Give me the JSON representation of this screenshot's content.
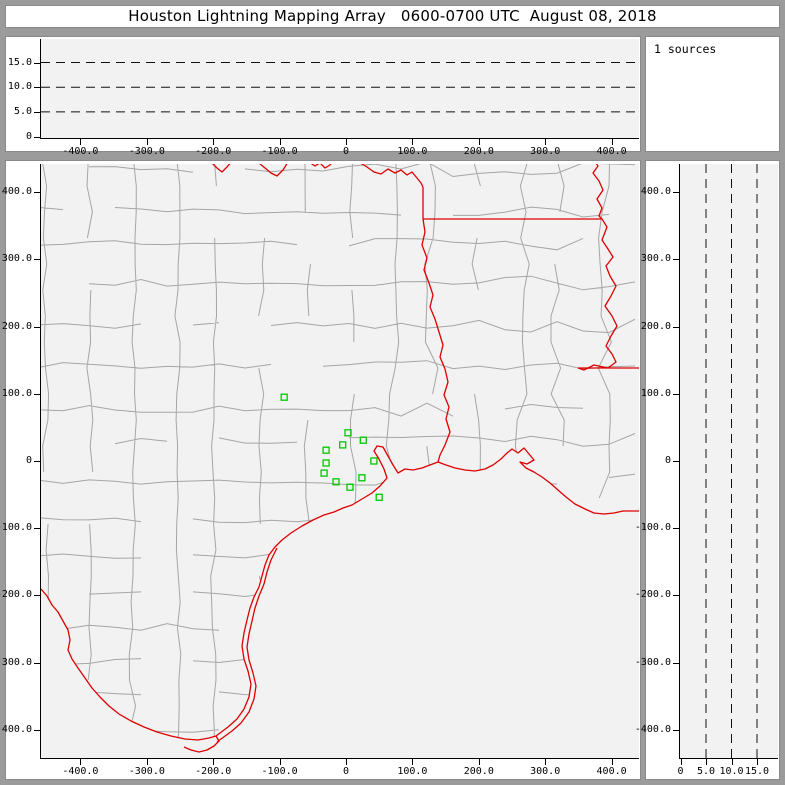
{
  "window": {
    "title": "Houston Lightning Mapping Array   0600-0700 UTC  August 08, 2018"
  },
  "sources_panel": {
    "label": "1 sources"
  },
  "colors": {
    "chrome": "#9b9b9b",
    "panel_bg": "#ffffff",
    "plot_bg": "#f2f2f2",
    "axis": "#000000",
    "county_line": "#a5a5a5",
    "state_border": "#dd0000",
    "station_marker": "#00c800"
  },
  "chart_data": [
    {
      "id": "altitude-vs-east-west",
      "type": "scatter",
      "position": "top",
      "title": "",
      "xlabel": "",
      "ylabel": "",
      "xlim": [
        -456,
        444
      ],
      "ylim": [
        0,
        20
      ],
      "x_tick_values": [
        -400,
        -300,
        -200,
        -100,
        0,
        100,
        200,
        300,
        400
      ],
      "x_tick_labels": [
        "-400.0",
        "-300.0",
        "-200.0",
        "-100.0",
        "0",
        "100.0",
        "200.0",
        "300.0",
        "400.0"
      ],
      "y_tick_values": [
        0,
        5,
        10,
        15
      ],
      "y_tick_labels": [
        "0",
        "5.0",
        "10.0",
        "15.0"
      ],
      "y_gridlines": [
        5,
        10,
        15
      ],
      "grid_style": "dashed",
      "points": []
    },
    {
      "id": "plan-view-map",
      "type": "scatter",
      "position": "center",
      "title": "",
      "xlabel": "",
      "ylabel": "",
      "xlim": [
        -456,
        444
      ],
      "ylim": [
        -442,
        446
      ],
      "x_tick_values": [
        -400,
        -300,
        -200,
        -100,
        0,
        100,
        200,
        300,
        400
      ],
      "x_tick_labels": [
        "-400.0",
        "-300.0",
        "-200.0",
        "-100.0",
        "0",
        "100.0",
        "200.0",
        "300.0",
        "400.0"
      ],
      "y_tick_values": [
        400,
        300,
        200,
        100,
        0,
        -100,
        -200,
        -300,
        -400
      ],
      "y_tick_labels": [
        "400.0",
        "300.0",
        "200.0",
        "100.0",
        "0",
        "-100.0",
        "-200.0",
        "-300.0",
        "-400.0"
      ],
      "map_layers": {
        "counties": "gray county boundaries",
        "state_borders": "red state borders, rivers and Gulf coastline"
      },
      "stations_km": [
        [
          -90,
          95
        ],
        [
          6,
          42
        ],
        [
          29,
          31
        ],
        [
          -2,
          24
        ],
        [
          -27,
          16
        ],
        [
          -27,
          -3
        ],
        [
          45,
          0
        ],
        [
          -30,
          -18
        ],
        [
          -12,
          -31
        ],
        [
          27,
          -25
        ],
        [
          9,
          -39
        ],
        [
          53,
          -54
        ]
      ],
      "points": []
    },
    {
      "id": "altitude-vs-north-south",
      "type": "scatter",
      "position": "right",
      "title": "",
      "xlabel": "",
      "ylabel": "",
      "xlim": [
        0,
        19
      ],
      "ylim": [
        -442,
        446
      ],
      "x_tick_values": [
        0,
        5,
        10,
        15
      ],
      "x_tick_labels": [
        "0",
        "5.0",
        "10.0",
        "15.0"
      ],
      "y_tick_values": [
        400,
        300,
        200,
        100,
        0,
        -100,
        -200,
        -300,
        -400
      ],
      "y_tick_labels": [
        "400.0",
        "300.0",
        "200.0",
        "100.0",
        "0",
        "-100.0",
        "-200.0",
        "-300.0",
        "-400.0"
      ],
      "x_gridlines": [
        5,
        10,
        15
      ],
      "grid_style": "dashed",
      "points": []
    }
  ]
}
